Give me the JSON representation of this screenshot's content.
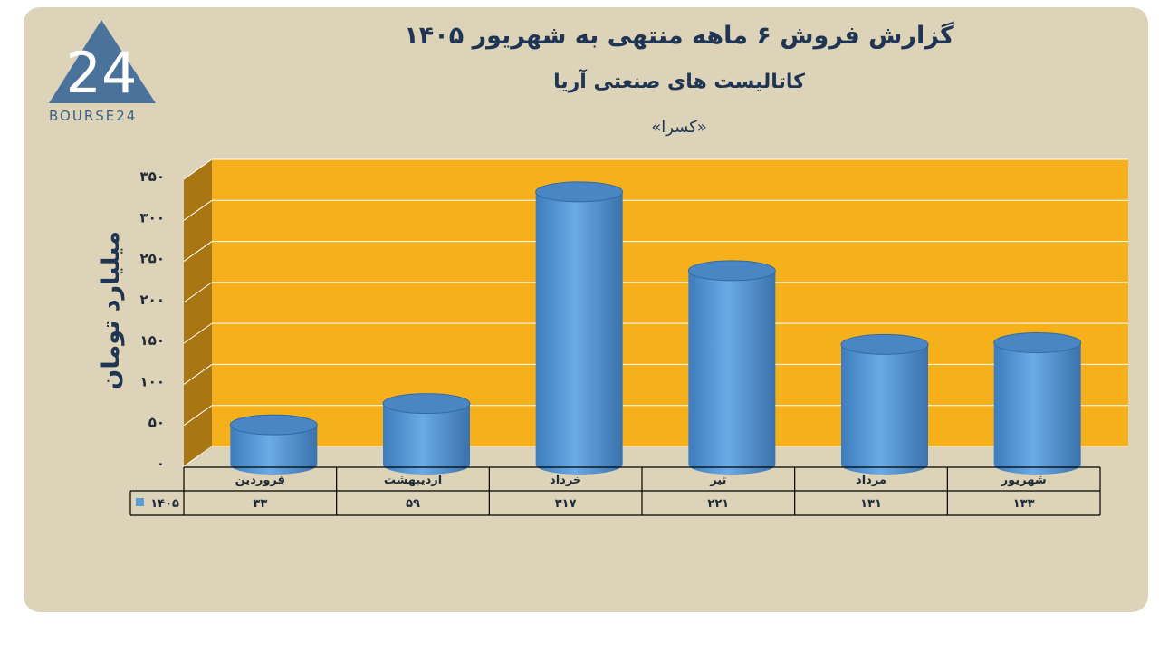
{
  "logo": {
    "icon": "bourse24-triangle-logo",
    "digits": "24",
    "wordmark": "BOURSE24"
  },
  "title": "گزارش  فروش ۶ ماهه منتهی به شهریور ۱۴۰۵",
  "subtitle": "کاتالیست های صنعتی آریا",
  "company": "«کسرا»",
  "colors": {
    "background": "#ddd3b8",
    "plot_back": "#f6b01c",
    "plot_side": "#a87713",
    "bar": "#5b9bd5",
    "text": "#1f3553"
  },
  "chart_data": {
    "type": "bar",
    "title": "گزارش  فروش ۶ ماهه منتهی به شهریور ۱۴۰۵",
    "ylabel": "میلیارد تومان",
    "xlabel": "",
    "ylim": [
      0,
      350
    ],
    "yticks": [
      0,
      50,
      100,
      150,
      200,
      250,
      300,
      350
    ],
    "ytick_labels": [
      "0",
      "50",
      "100",
      "150",
      "200",
      "250",
      "300",
      "350"
    ],
    "categories": [
      "فروردین",
      "اردیبهشت",
      "خرداد",
      "تیر",
      "مرداد",
      "شهریور"
    ],
    "series": [
      {
        "name": "۱۴۰۵",
        "values": [
          33,
          59,
          317,
          221,
          131,
          133
        ],
        "value_labels": [
          "۳۳",
          "۵۹",
          "۳۱۷",
          "۲۲۱",
          "۱۳۱",
          "۱۳۳"
        ]
      }
    ],
    "grid": true,
    "legend": "data-table-left",
    "style": "3d-cylinder"
  }
}
